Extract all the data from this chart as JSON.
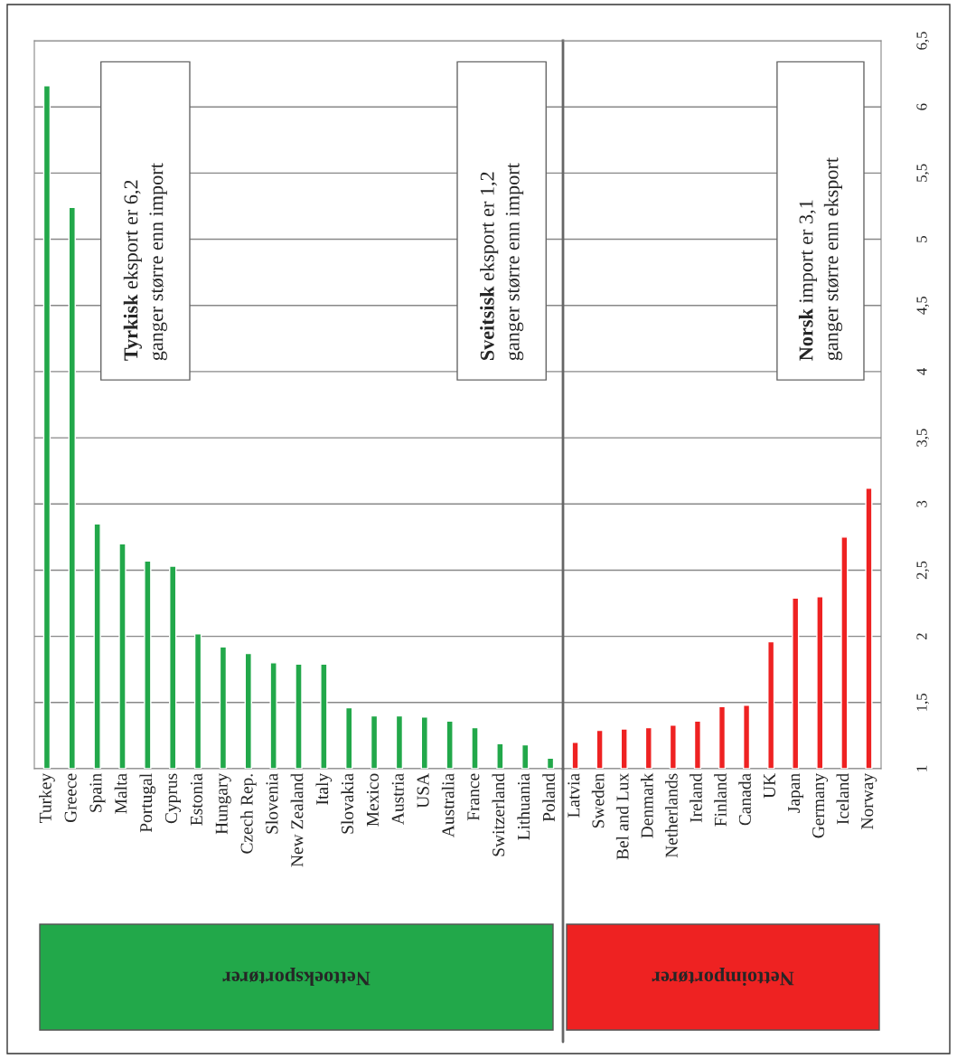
{
  "chart_data": [
    {
      "type": "bar",
      "categories": [
        "Turkey",
        "Greece",
        "Spain",
        "Malta",
        "Portugal",
        "Cyprus",
        "Estonia",
        "Hungary",
        "Czech Rep.",
        "Slovenia",
        "New Zealand",
        "Italy",
        "Slovakia",
        "Mexico",
        "Austria",
        "USA",
        "Australia",
        "France",
        "Switzerland",
        "Lithuania",
        "Poland"
      ],
      "series": [
        {
          "color": "#22a84a",
          "values": [
            6.16,
            5.24,
            2.85,
            2.7,
            2.57,
            2.53,
            2.02,
            1.92,
            1.87,
            1.8,
            1.79,
            1.79,
            1.46,
            1.4,
            1.4,
            1.39,
            1.36,
            1.31,
            1.19,
            1.18,
            1.08
          ]
        }
      ],
      "ylim": [
        1,
        6.5
      ],
      "yticks": [
        1,
        1.5,
        2,
        2.5,
        3,
        3.5,
        4,
        4.5,
        5,
        5.5,
        6,
        6.5
      ],
      "grid": "y",
      "tick_labels": "x",
      "annotations": [
        "Tyrkisk eksport er 6,2\nganger større enn import",
        "Sveitsisk eksport er 1,2\nganger større enn import",
        "Nettoeksportører"
      ]
    },
    {
      "type": "bar",
      "categories": [
        "Latvia",
        "Sweden",
        "Bel and Lux",
        "Denmark",
        "Netherlands",
        "Ireland",
        "Finland",
        "Canada",
        "UK",
        "Japan",
        "Germany",
        "Iceland",
        "Norway"
      ],
      "series": [
        {
          "color": "#ee2222",
          "values": [
            1.2,
            1.29,
            1.3,
            1.31,
            1.33,
            1.36,
            1.47,
            1.48,
            1.96,
            2.29,
            2.3,
            2.75,
            3.12
          ]
        }
      ],
      "ylim": [
        1,
        6.5
      ],
      "yticks": [
        1,
        {
          "value": 1.5,
          "label": "1,5"
        },
        2,
        {
          "value": 2.5,
          "label": "2,5"
        },
        3,
        {
          "value": 3.5,
          "label": "3,5"
        },
        4,
        {
          "value": 4.5,
          "label": "4,5"
        },
        5,
        {
          "value": 5.5,
          "label": "5,5"
        },
        6,
        {
          "value": 6.5,
          "label": "6,5"
        }
      ],
      "grid": "y",
      "annotations": [
        "Norsk import er 3,1\nganger større enn eksport",
        "Nettoimportører"
      ]
    }
  ]
}
